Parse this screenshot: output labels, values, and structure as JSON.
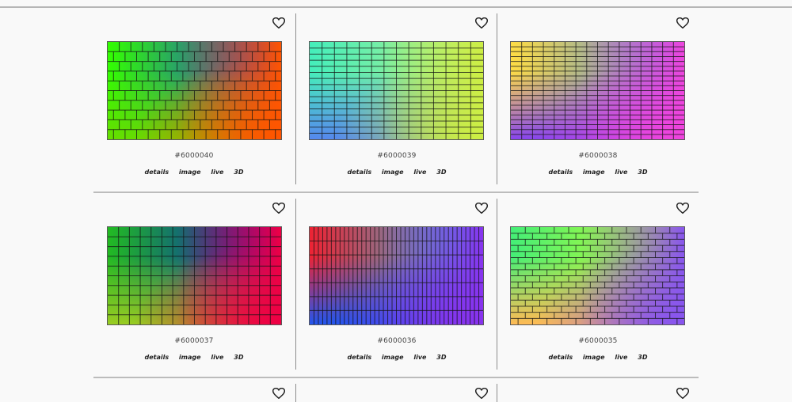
{
  "palettes": [
    {
      "id": "#6000040",
      "colors": {
        "tl": "#33ff00",
        "tr": "#1a1aff",
        "bl": "#66dd00",
        "br": "#ff5500"
      },
      "grid": {
        "cols": 15,
        "rows": 10,
        "style": "brick"
      }
    },
    {
      "id": "#6000039",
      "colors": {
        "tl": "#44eebb",
        "tr": "#bbee88",
        "bl": "#5588ee",
        "br": "#ccee44"
      },
      "grid": {
        "cols": 14,
        "rows": 16,
        "style": "regular"
      }
    },
    {
      "id": "#6000038",
      "colors": {
        "tl": "#ffdd44",
        "tr": "#4488ee",
        "bl": "#8844ee",
        "br": "#ee44dd"
      },
      "grid": {
        "cols": 16,
        "rows": 20,
        "style": "regular"
      }
    },
    {
      "id": "#6000037",
      "colors": {
        "tl": "#22bb22",
        "tr": "#0000dd",
        "bl": "#99cc22",
        "br": "#ee0044"
      },
      "grid": {
        "cols": 16,
        "rows": 10,
        "style": "regular"
      }
    },
    {
      "id": "#6000036",
      "colors": {
        "tl": "#ee2233",
        "tr": "#22ccee",
        "bl": "#2255ee",
        "br": "#8833ee"
      },
      "grid": {
        "cols": 40,
        "rows": 7,
        "style": "regular"
      }
    },
    {
      "id": "#6000035",
      "colors": {
        "tl": "#44ee77",
        "tr": "#ddff22",
        "bl": "#ffbb55",
        "br": "#8855ee"
      },
      "grid": {
        "cols": 12,
        "rows": 16,
        "style": "brick"
      }
    }
  ],
  "links": {
    "details": "details",
    "image": "image",
    "live": "live",
    "three_d": "3D"
  },
  "icons": {
    "favorite": "heart-outline-icon"
  }
}
